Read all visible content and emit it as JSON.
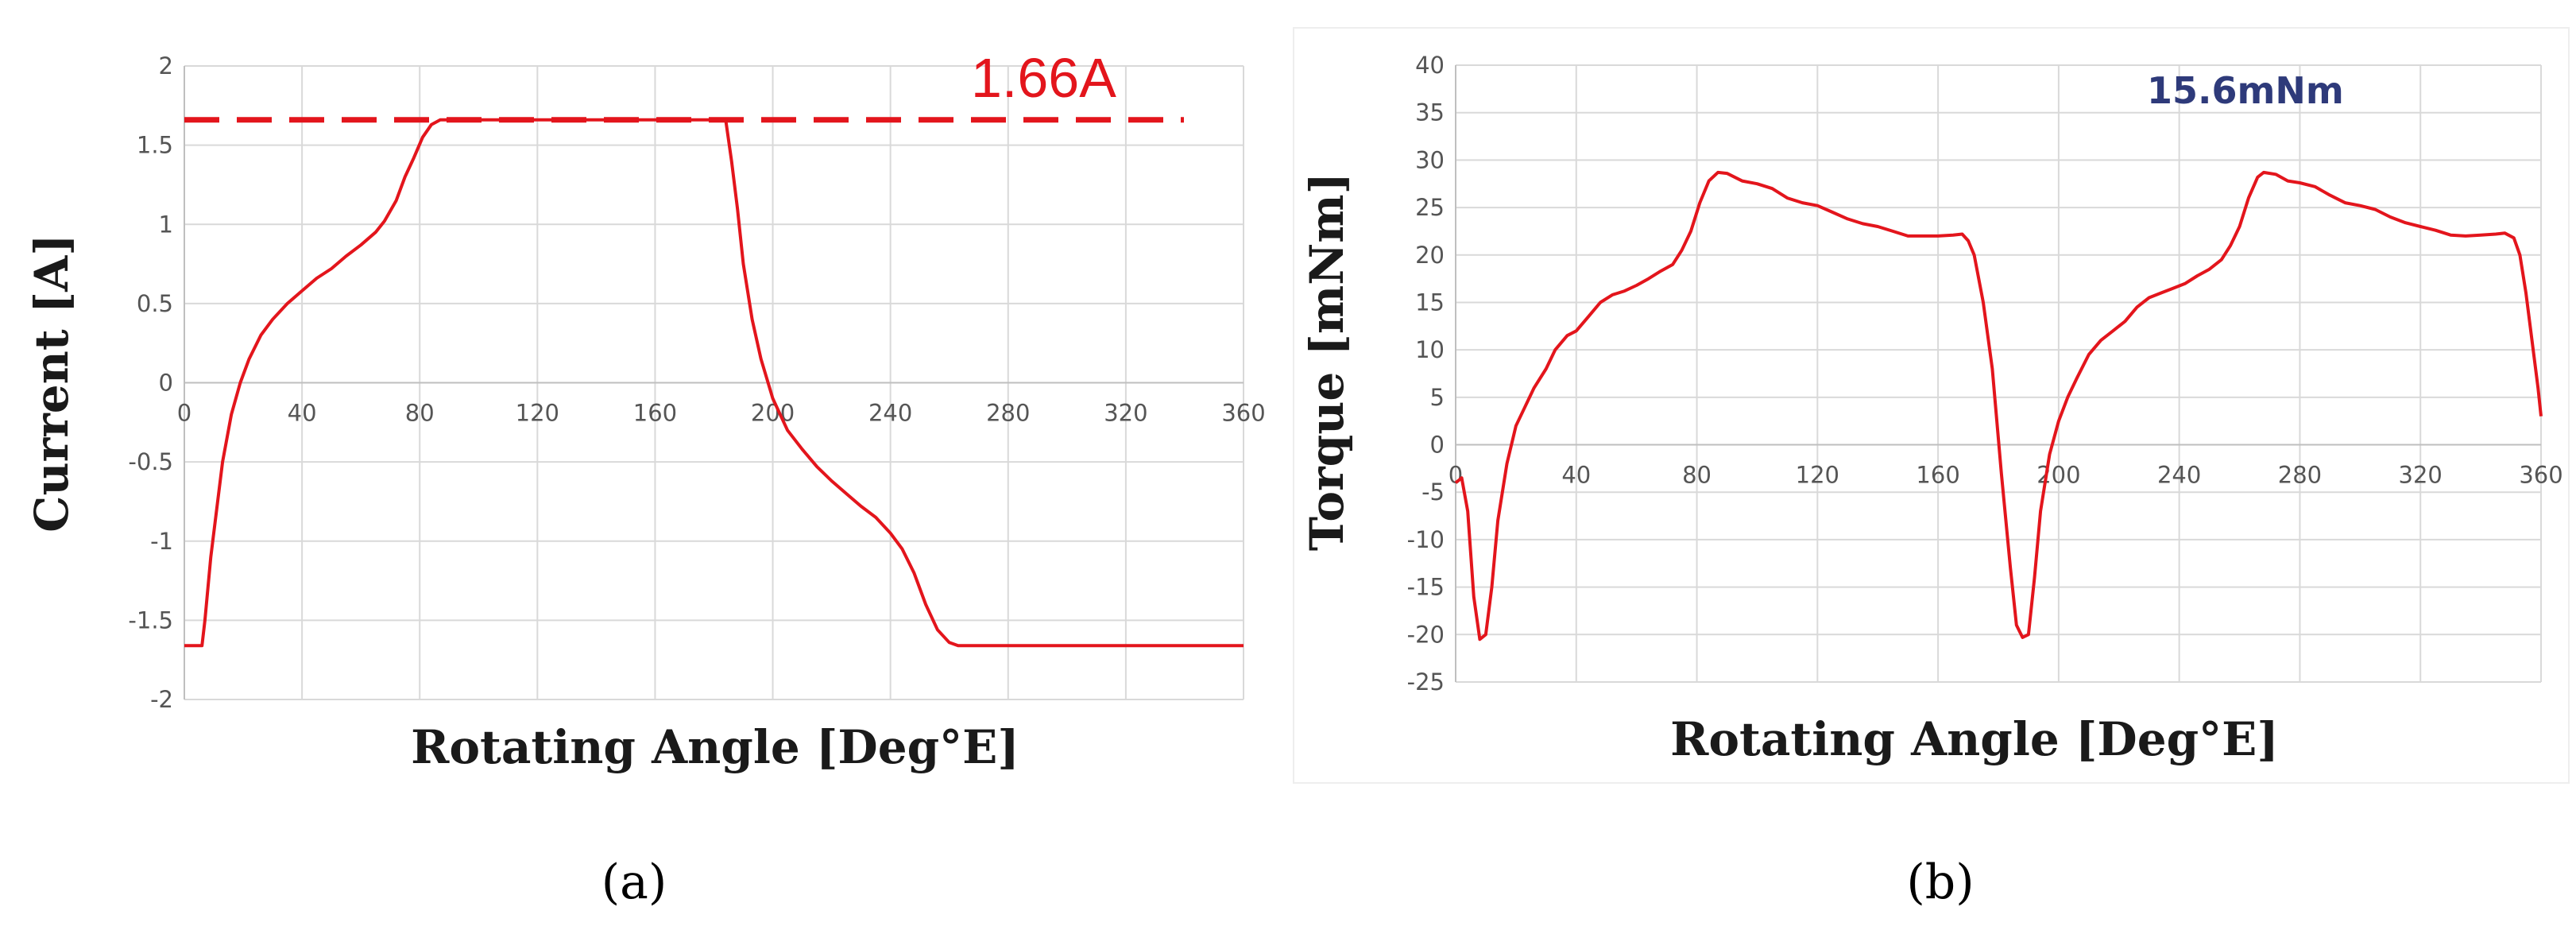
{
  "chart_data": [
    {
      "panel_label": "(a)",
      "type": "line",
      "title": "",
      "xlabel": "Rotating Angle [Deg°E]",
      "ylabel": "Current [A]",
      "xlim": [
        0,
        360
      ],
      "ylim": [
        -2,
        2
      ],
      "xticks": [
        0,
        40,
        80,
        120,
        160,
        200,
        240,
        280,
        320,
        360
      ],
      "yticks": [
        2,
        1.5,
        1,
        0.5,
        0,
        -0.5,
        -1,
        -1.5,
        -2
      ],
      "ytick_labels": [
        "2",
        "1.5",
        "1",
        "0.5",
        "0",
        "-0.5",
        "-1",
        "-1.5",
        "-2"
      ],
      "grid": true,
      "reference_line": {
        "y": 1.66,
        "label": "1.66A",
        "style": "dashed"
      },
      "series": [
        {
          "color": "#e3151c",
          "points": [
            [
              0,
              -1.66
            ],
            [
              6,
              -1.66
            ],
            [
              7,
              -1.5
            ],
            [
              9,
              -1.1
            ],
            [
              11,
              -0.8
            ],
            [
              13,
              -0.5
            ],
            [
              16,
              -0.2
            ],
            [
              19,
              0.0
            ],
            [
              22,
              0.15
            ],
            [
              26,
              0.3
            ],
            [
              30,
              0.4
            ],
            [
              35,
              0.5
            ],
            [
              40,
              0.58
            ],
            [
              45,
              0.66
            ],
            [
              50,
              0.72
            ],
            [
              55,
              0.8
            ],
            [
              60,
              0.87
            ],
            [
              65,
              0.95
            ],
            [
              68,
              1.02
            ],
            [
              72,
              1.15
            ],
            [
              75,
              1.3
            ],
            [
              78,
              1.42
            ],
            [
              81,
              1.55
            ],
            [
              84,
              1.63
            ],
            [
              87,
              1.66
            ],
            [
              180,
              1.66
            ],
            [
              184,
              1.66
            ],
            [
              186,
              1.4
            ],
            [
              188,
              1.1
            ],
            [
              190,
              0.75
            ],
            [
              193,
              0.4
            ],
            [
              196,
              0.15
            ],
            [
              200,
              -0.1
            ],
            [
              205,
              -0.3
            ],
            [
              210,
              -0.42
            ],
            [
              215,
              -0.53
            ],
            [
              220,
              -0.62
            ],
            [
              225,
              -0.7
            ],
            [
              230,
              -0.78
            ],
            [
              235,
              -0.85
            ],
            [
              240,
              -0.95
            ],
            [
              244,
              -1.05
            ],
            [
              248,
              -1.2
            ],
            [
              252,
              -1.4
            ],
            [
              256,
              -1.56
            ],
            [
              260,
              -1.64
            ],
            [
              263,
              -1.66
            ],
            [
              360,
              -1.66
            ]
          ]
        }
      ]
    },
    {
      "panel_label": "(b)",
      "type": "line",
      "title": "",
      "xlabel": "Rotating Angle [Deg°E]",
      "ylabel": "Torque [mNm]",
      "xlim": [
        0,
        360
      ],
      "ylim": [
        -25,
        40
      ],
      "xticks": [
        0,
        40,
        80,
        120,
        160,
        200,
        240,
        280,
        320,
        360
      ],
      "yticks": [
        40,
        35,
        30,
        25,
        20,
        15,
        10,
        5,
        0,
        -5,
        -10,
        -15,
        -20,
        -25
      ],
      "annotation": "15.6mNm",
      "grid": true,
      "series": [
        {
          "color": "#e3151c",
          "points": [
            [
              0,
              -4
            ],
            [
              2,
              -3.5
            ],
            [
              4,
              -7
            ],
            [
              6,
              -16
            ],
            [
              8,
              -20.5
            ],
            [
              10,
              -20
            ],
            [
              12,
              -15
            ],
            [
              14,
              -8
            ],
            [
              17,
              -2
            ],
            [
              20,
              2
            ],
            [
              23,
              4
            ],
            [
              26,
              6
            ],
            [
              30,
              8
            ],
            [
              33,
              10
            ],
            [
              37,
              11.5
            ],
            [
              40,
              12
            ],
            [
              44,
              13.5
            ],
            [
              48,
              15
            ],
            [
              52,
              15.8
            ],
            [
              56,
              16.2
            ],
            [
              60,
              16.8
            ],
            [
              64,
              17.5
            ],
            [
              68,
              18.3
            ],
            [
              72,
              19
            ],
            [
              75,
              20.5
            ],
            [
              78,
              22.5
            ],
            [
              81,
              25.5
            ],
            [
              84,
              27.8
            ],
            [
              87,
              28.7
            ],
            [
              90,
              28.6
            ],
            [
              95,
              27.8
            ],
            [
              100,
              27.5
            ],
            [
              105,
              27
            ],
            [
              110,
              26
            ],
            [
              115,
              25.5
            ],
            [
              120,
              25.2
            ],
            [
              125,
              24.5
            ],
            [
              130,
              23.8
            ],
            [
              135,
              23.3
            ],
            [
              140,
              23
            ],
            [
              145,
              22.5
            ],
            [
              150,
              22
            ],
            [
              155,
              22
            ],
            [
              160,
              22
            ],
            [
              165,
              22.1
            ],
            [
              168,
              22.2
            ],
            [
              170,
              21.5
            ],
            [
              172,
              20
            ],
            [
              175,
              15
            ],
            [
              178,
              8
            ],
            [
              181,
              -3
            ],
            [
              184,
              -13
            ],
            [
              186,
              -19
            ],
            [
              188,
              -20.3
            ],
            [
              190,
              -20
            ],
            [
              192,
              -14
            ],
            [
              194,
              -7
            ],
            [
              197,
              -1
            ],
            [
              200,
              2.5
            ],
            [
              203,
              5
            ],
            [
              206,
              7
            ],
            [
              210,
              9.5
            ],
            [
              214,
              11
            ],
            [
              218,
              12
            ],
            [
              222,
              13
            ],
            [
              226,
              14.5
            ],
            [
              230,
              15.5
            ],
            [
              234,
              16
            ],
            [
              238,
              16.5
            ],
            [
              242,
              17
            ],
            [
              246,
              17.8
            ],
            [
              250,
              18.5
            ],
            [
              254,
              19.5
            ],
            [
              257,
              21
            ],
            [
              260,
              23
            ],
            [
              263,
              26
            ],
            [
              266,
              28.2
            ],
            [
              268,
              28.7
            ],
            [
              272,
              28.5
            ],
            [
              276,
              27.8
            ],
            [
              280,
              27.6
            ],
            [
              285,
              27.2
            ],
            [
              290,
              26.3
            ],
            [
              295,
              25.5
            ],
            [
              300,
              25.2
            ],
            [
              305,
              24.8
            ],
            [
              310,
              24
            ],
            [
              315,
              23.4
            ],
            [
              320,
              23
            ],
            [
              325,
              22.6
            ],
            [
              330,
              22.1
            ],
            [
              335,
              22
            ],
            [
              340,
              22.1
            ],
            [
              345,
              22.2
            ],
            [
              348,
              22.3
            ],
            [
              351,
              21.8
            ],
            [
              353,
              20
            ],
            [
              355,
              16
            ],
            [
              357,
              11
            ],
            [
              359,
              6
            ],
            [
              360,
              3
            ]
          ]
        }
      ]
    }
  ]
}
